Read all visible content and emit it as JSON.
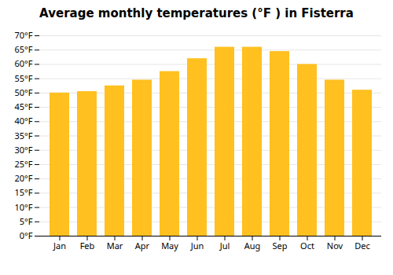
{
  "chart_data": {
    "type": "bar",
    "title": "Average monthly temperatures (°F ) in Fisterra",
    "categories": [
      "Jan",
      "Feb",
      "Mar",
      "Apr",
      "May",
      "Jun",
      "Jul",
      "Aug",
      "Sep",
      "Oct",
      "Nov",
      "Dec"
    ],
    "values": [
      50,
      50.5,
      52.5,
      54.5,
      57.5,
      62,
      66,
      66,
      64.5,
      60,
      54.5,
      51
    ],
    "color": "#FFC020",
    "ylim": [
      0,
      70
    ],
    "yticks": [
      {
        "value": 0,
        "label": "0°F"
      },
      {
        "value": 5,
        "label": "5°F"
      },
      {
        "value": 10,
        "label": "10°F"
      },
      {
        "value": 15,
        "label": "15°F"
      },
      {
        "value": 20,
        "label": "20°F"
      },
      {
        "value": 25,
        "label": "25°F"
      },
      {
        "value": 30,
        "label": "30°F"
      },
      {
        "value": 35,
        "label": "35°F"
      },
      {
        "value": 40,
        "label": "40°F"
      },
      {
        "value": 45,
        "label": "45°F"
      },
      {
        "value": 50,
        "label": "50°F"
      },
      {
        "value": 55,
        "label": "55°F"
      },
      {
        "value": 60,
        "label": "60°F"
      },
      {
        "value": 65,
        "label": "65°F"
      },
      {
        "value": 70,
        "label": "70°F"
      }
    ],
    "grid": true
  }
}
